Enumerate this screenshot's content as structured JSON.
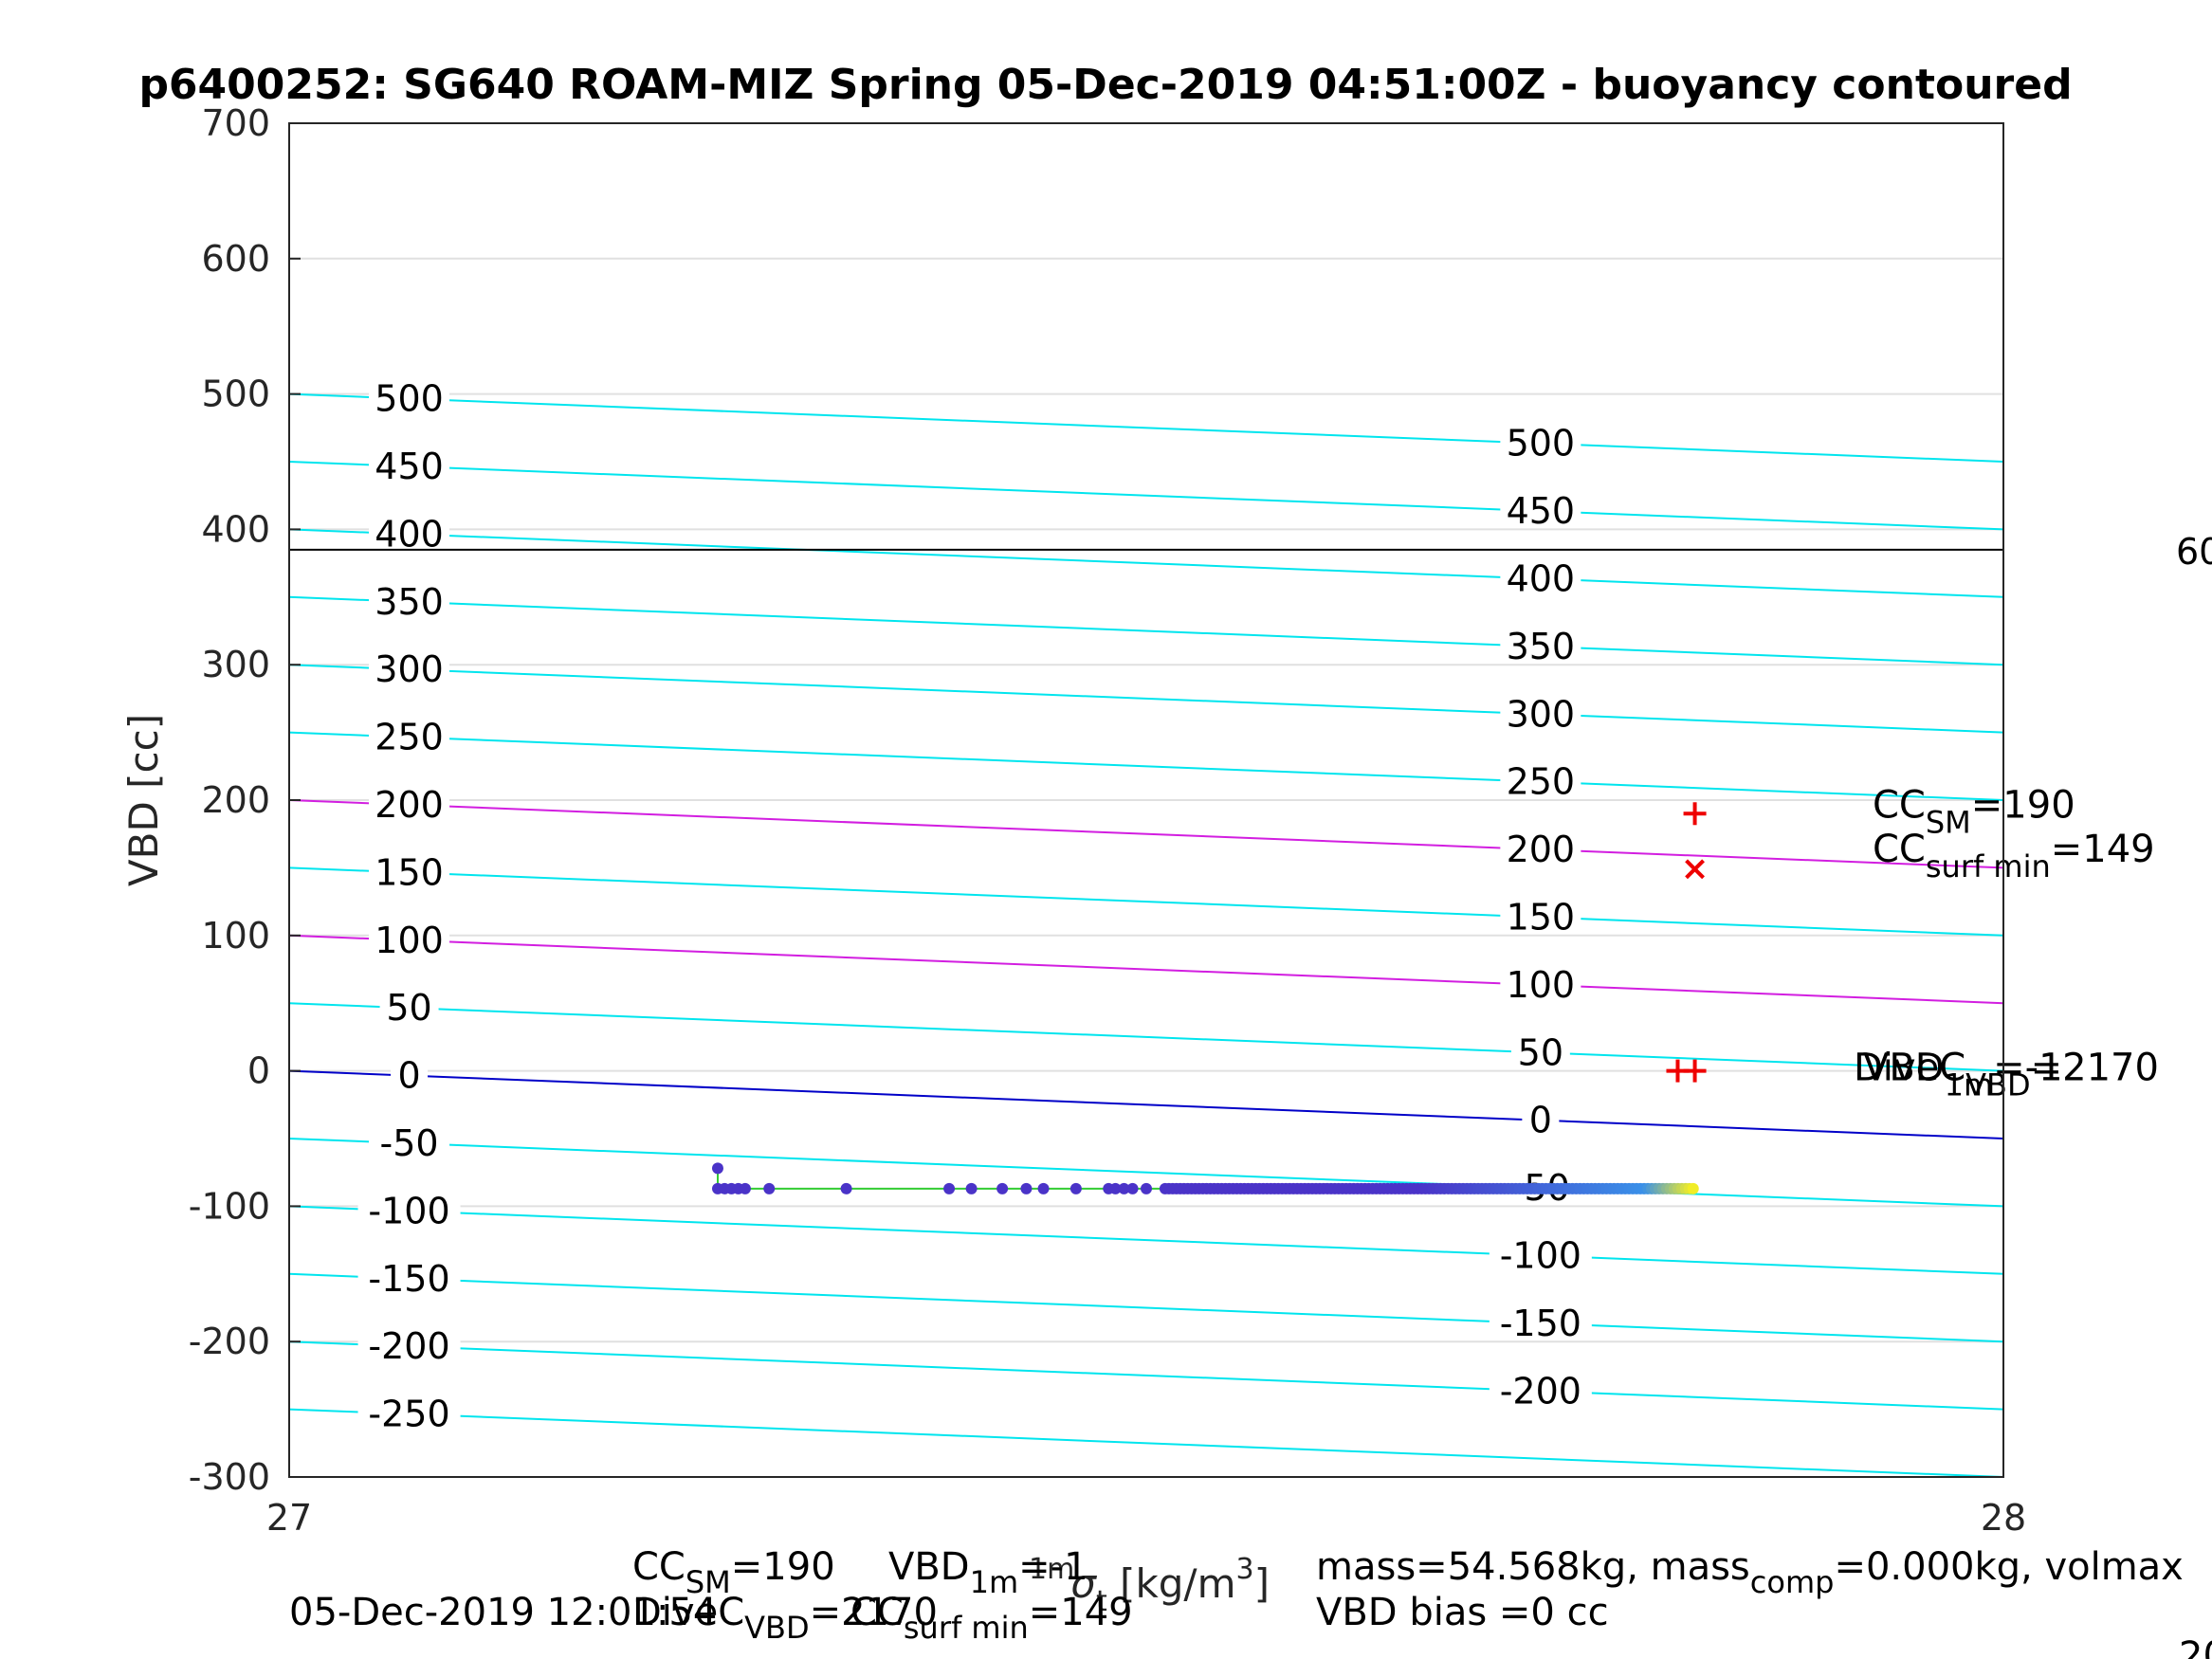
{
  "chart_data": {
    "type": "scatter",
    "title": "p6400252: SG640 ROAM-MIZ Spring 05-Dec-2019 04:51:00Z - buoyancy contoured",
    "ylabel": "VBD [cc]",
    "xlabel_main": "σ",
    "xlabel_sup": "1m",
    "xlabel_sub": "t",
    "xlabel_unit_pre": " [kg/m",
    "xlabel_unit_sup": "3",
    "xlabel_unit_post": "]",
    "xlim": [
      27,
      28
    ],
    "ylim": [
      -300,
      700
    ],
    "xticks": [
      "27",
      "28"
    ],
    "yticks": [
      "-300",
      "-200",
      "-100",
      "0",
      "100",
      "200",
      "300",
      "400",
      "500",
      "600",
      "700"
    ],
    "grid": true,
    "reference_line_vbd": 385,
    "reference_line_right_label": "60",
    "contour_levels": [
      -250,
      -200,
      -150,
      -100,
      -50,
      0,
      50,
      100,
      150,
      200,
      250,
      300,
      350,
      400,
      450,
      500
    ],
    "contour_label_text": {
      "left": [
        "-250",
        "-200",
        "-150",
        "-100",
        "-50",
        "0",
        "50",
        "100",
        "150",
        "200",
        "250",
        "300",
        "350",
        "400",
        "450",
        "500"
      ],
      "right": [
        "-200",
        "-150",
        "-100",
        "-50",
        "0",
        "50",
        "100",
        "150",
        "200",
        "250",
        "300",
        "350",
        "400",
        "450",
        "500"
      ]
    },
    "highlight_levels": {
      "zero": 0,
      "magenta": [
        100,
        200
      ]
    },
    "dive_series": {
      "x_start": 27.25,
      "x_end": 27.82,
      "vbd": -87,
      "top_point": [
        27.25,
        -72
      ]
    },
    "markers": [
      {
        "symbol": "+",
        "x": 27.82,
        "y": 190,
        "label_main": "CC",
        "label_sub": "SM",
        "label_post": "=190"
      },
      {
        "symbol": "x",
        "x": 27.82,
        "y": 149,
        "label_main": "CC",
        "label_sub": "surf min",
        "label_post": "=149"
      },
      {
        "symbol": "+",
        "x": 27.81,
        "y": 0,
        "label_main": "DiveC",
        "label_sub": "VBD",
        "label_post": "=2170"
      },
      {
        "symbol": "+",
        "x": 27.82,
        "y": 0,
        "label_main": "VBD",
        "label_sub": "1m",
        "label_post": "=-1"
      }
    ],
    "footer": {
      "timestamp": "05-Dec-2019 12:01:54",
      "cc_sm_main": "CC",
      "cc_sm_sub": "SM",
      "cc_sm_post": "=190",
      "vbd_main": "VBD",
      "vbd_sub": "1m",
      "vbd_post": "=-1",
      "divec_main": "DiveC",
      "divec_sub": "VBD",
      "divec_post": "=2170",
      "ccsurf_main": "CC",
      "ccsurf_sub": "surf min",
      "ccsurf_post": "=149",
      "mass_main": "mass=54.568kg, mass",
      "mass_sub": "comp",
      "mass_post": "=0.000kg, volmax",
      "bias": "VBD bias =0 cc",
      "cut_value": "20"
    },
    "colors": {
      "contour": "#00e5ee",
      "magenta": "#d21ee0",
      "zero": "#0000c8",
      "dive_line": "#33cc33",
      "marker": "#ee0000",
      "grid": "#e0e0e0",
      "points_start": "#4a33c8",
      "points_mid": "#3a90e8",
      "points_end": "#f8f020"
    }
  }
}
